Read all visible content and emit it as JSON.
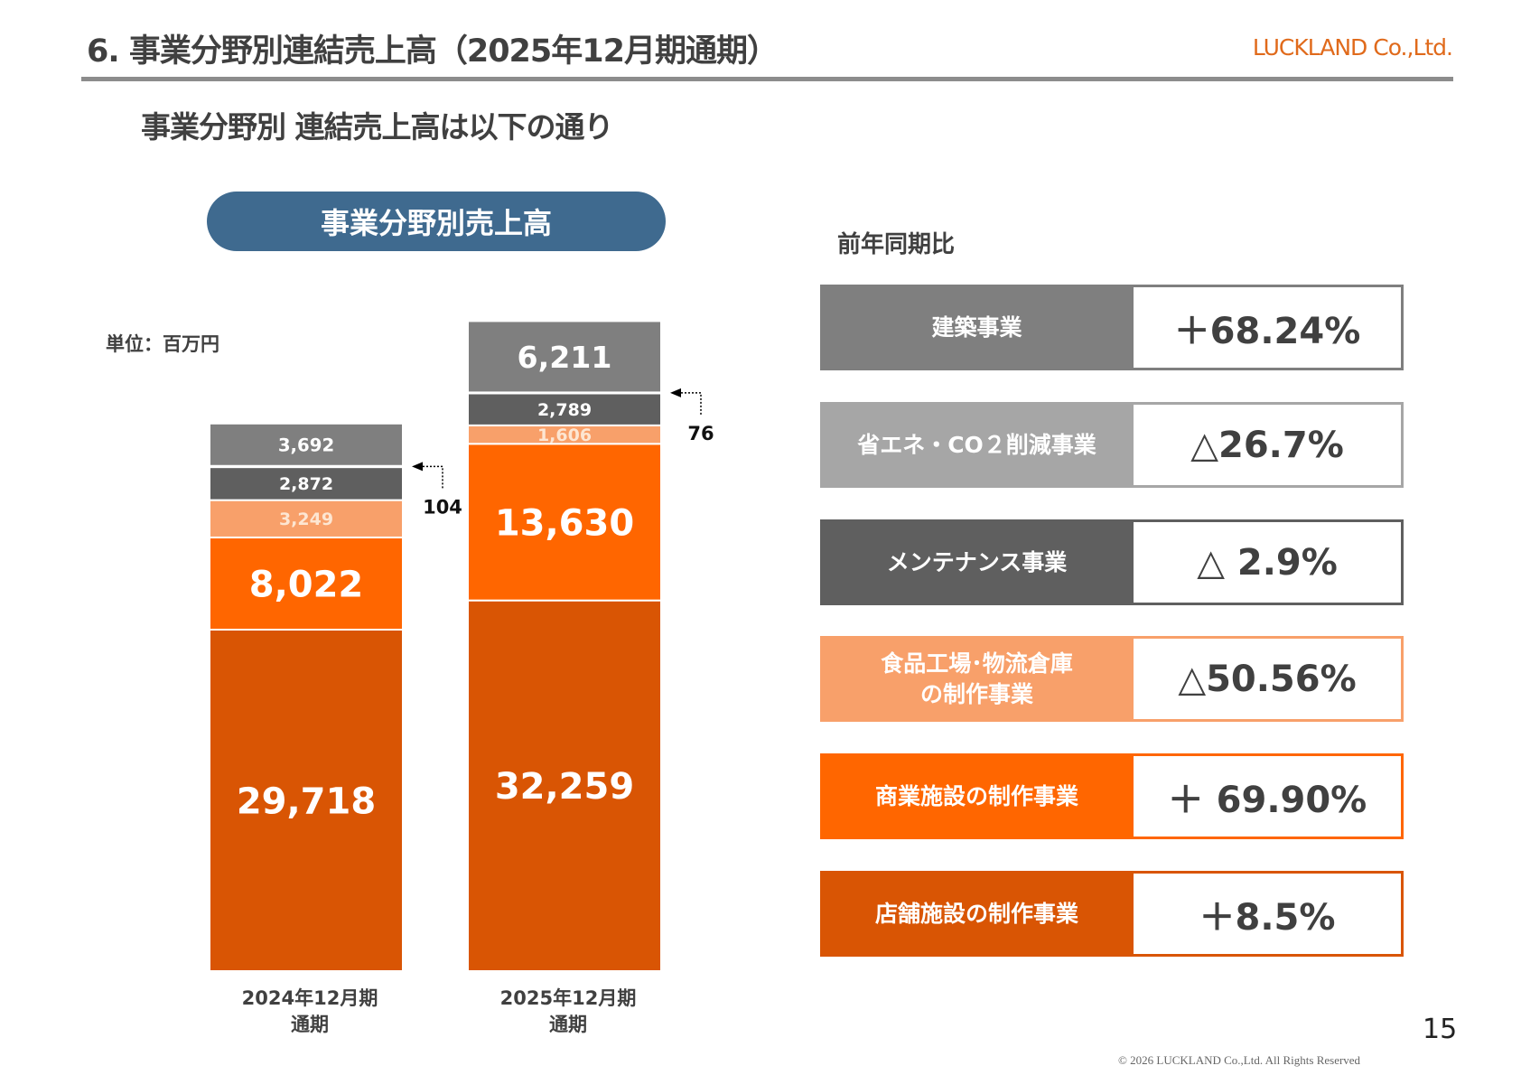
{
  "header": {
    "title": "6. 事業分野別連結売上高（2025年12月期通期）",
    "logo_text": "LUCKLAND Co.,Ltd.",
    "subtitle": "事業分野別 連結売上高は以下の通り"
  },
  "chart_data": {
    "type": "bar",
    "stacked": true,
    "title": "事業分野別売上高",
    "unit_label": "単位：百万円",
    "categories": [
      "2024年12月期\n通期",
      "2025年12月期\n通期"
    ],
    "category_lines": [
      [
        "2024年12月期",
        "通期"
      ],
      [
        "2025年12月期",
        "通期"
      ]
    ],
    "series": [
      {
        "name": "店舗施設の制作事業",
        "color": "#D95504",
        "values": [
          29718,
          32259
        ],
        "labels": [
          "29,718",
          "32,259"
        ]
      },
      {
        "name": "商業施設の制作事業",
        "color": "#FF6600",
        "values": [
          8022,
          13630
        ],
        "labels": [
          "8,022",
          "13,630"
        ]
      },
      {
        "name": "食品工場・物流倉庫の制作事業",
        "color": "#F8A06A",
        "values": [
          3249,
          1606
        ],
        "labels": [
          "3,249",
          "1,606"
        ]
      },
      {
        "name": "メンテナンス事業",
        "color": "#5F5F5F",
        "values": [
          2872,
          2789
        ],
        "labels": [
          "2,872",
          "2,789"
        ]
      },
      {
        "name": "省エネ・CO２削減事業",
        "color": "#A6A6A6",
        "values": [
          104,
          76
        ],
        "labels": [
          "104",
          "76"
        ],
        "callout": true
      },
      {
        "name": "建築事業",
        "color": "#7F7F7F",
        "values": [
          3692,
          6211
        ],
        "labels": [
          "3,692",
          "6,211"
        ]
      }
    ],
    "xlabel": "",
    "ylabel": "",
    "grid": false
  },
  "yoy": {
    "title": "前年同期比",
    "rows": [
      {
        "label": "建築事業",
        "value": "＋68.24%",
        "color": "#7F7F7F"
      },
      {
        "label": "省エネ・CO２削減事業",
        "value": "△26.7%",
        "color": "#A6A6A6"
      },
      {
        "label": "メンテナンス事業",
        "value": "△ 2.9%",
        "color": "#5F5F5F"
      },
      {
        "label": "食品工場･物流倉庫\nの制作事業",
        "value": "△50.56%",
        "color": "#F8A06A"
      },
      {
        "label": "商業施設の制作事業",
        "value": "＋ 69.90%",
        "color": "#FF6600"
      },
      {
        "label": "店舗施設の制作事業",
        "value": "＋8.5%",
        "color": "#D95504"
      }
    ]
  },
  "footer": {
    "page_number": "15",
    "copyright": "© 2026 LUCKLAND Co.,Ltd. All Rights Reserved"
  }
}
